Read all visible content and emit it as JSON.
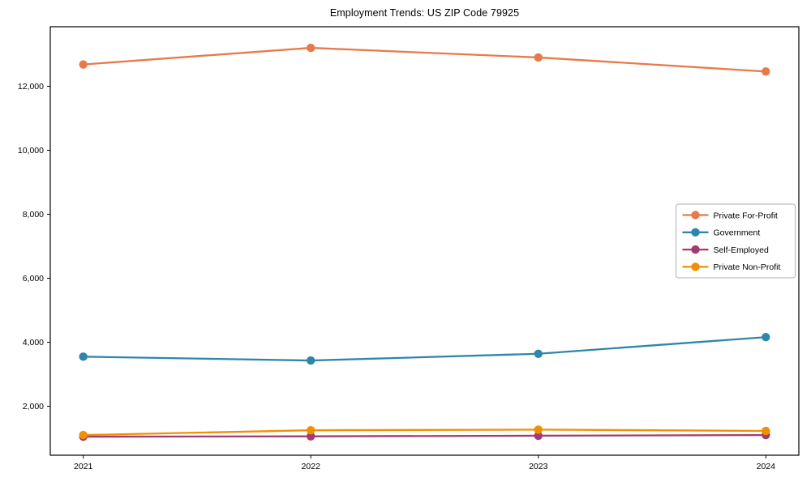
{
  "chart_data": {
    "type": "line",
    "title": "Employment Trends: US ZIP Code 79925",
    "xlabel": "",
    "ylabel": "",
    "x": [
      2021,
      2022,
      2023,
      2024
    ],
    "series": [
      {
        "name": "Private For-Profit",
        "color": "#E87A4A",
        "values": [
          12680,
          13200,
          12900,
          12460
        ]
      },
      {
        "name": "Government",
        "color": "#2E86AB",
        "values": [
          3550,
          3430,
          3640,
          4160
        ]
      },
      {
        "name": "Self-Employed",
        "color": "#A23B72",
        "values": [
          1050,
          1060,
          1080,
          1100
        ]
      },
      {
        "name": "Private Non-Profit",
        "color": "#F18F01",
        "values": [
          1100,
          1250,
          1270,
          1230
        ]
      }
    ],
    "yticks": [
      2000,
      4000,
      6000,
      8000,
      10000,
      12000
    ],
    "ylim": [
      470,
      13860
    ],
    "grid": false,
    "legend_position": "center right",
    "marker": "o",
    "axis_color": "#000000",
    "legend_border_color": "#b0b0b0"
  }
}
